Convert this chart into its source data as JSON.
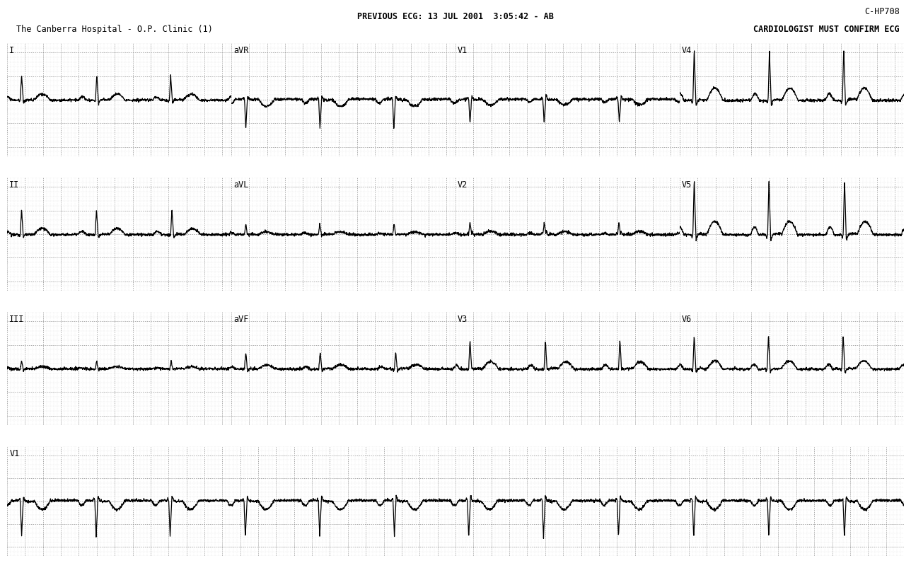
{
  "title_line1": "PREVIOUS ECG: 13 JUL 2001  3:05:42 - AB",
  "title_line2": "The Canberra Hospital - O.P. Clinic (1)",
  "top_right1": "C-HP708",
  "top_right2": "CARDIOLOGIST MUST CONFIRM ECG",
  "background_color": "#ffffff",
  "grid_minor_color": "#bbbbbb",
  "grid_major_color": "#888888",
  "ecg_color": "#000000",
  "text_color": "#000000",
  "font_size_header": 8.5,
  "font_size_lead": 8.5,
  "hr": 72,
  "col_dur": 2.5,
  "long_dur": 10.0,
  "row_leads": [
    [
      [
        "I",
        "normal",
        10
      ],
      [
        "aVR",
        "avr",
        11
      ],
      [
        "V1",
        "v1",
        12
      ],
      [
        "V4",
        "tall",
        13
      ]
    ],
    [
      [
        "II",
        "normal",
        20
      ],
      [
        "aVL",
        "small",
        21
      ],
      [
        "V2",
        "v2",
        22
      ],
      [
        "V5",
        "tall2",
        23
      ]
    ],
    [
      [
        "III",
        "small2",
        30
      ],
      [
        "aVF",
        "normal2",
        31
      ],
      [
        "V3",
        "v3",
        32
      ],
      [
        "V6",
        "normal3",
        33
      ]
    ]
  ],
  "long_lead": [
    "V1",
    "v1_long",
    40
  ]
}
